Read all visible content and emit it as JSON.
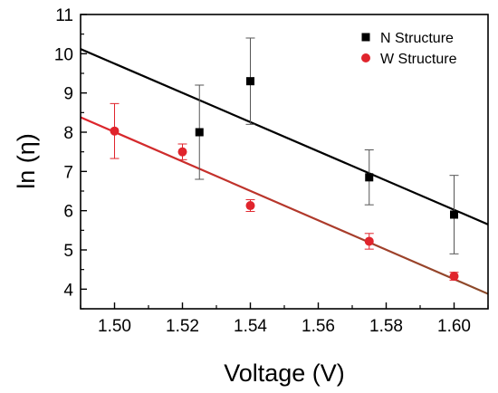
{
  "chart_data": {
    "type": "scatter",
    "xlabel": "Voltage (V)",
    "ylabel": "ln (η)",
    "xlim": [
      1.49,
      1.61
    ],
    "ylim": [
      3.5,
      11
    ],
    "x_ticks": [
      1.5,
      1.52,
      1.54,
      1.56,
      1.58,
      1.6
    ],
    "x_tick_labels": [
      "1.50",
      "1.52",
      "1.54",
      "1.56",
      "1.58",
      "1.60"
    ],
    "y_ticks": [
      4,
      5,
      6,
      7,
      8,
      9,
      10,
      11
    ],
    "y_tick_labels": [
      "4",
      "5",
      "6",
      "7",
      "8",
      "9",
      "10",
      "11"
    ],
    "grid": false,
    "legend_position": "top-right",
    "series": [
      {
        "name": "N  Structure",
        "marker": "square",
        "color": "#000000",
        "points": [
          {
            "x": 1.525,
            "y": 8.0,
            "err": 1.2
          },
          {
            "x": 1.54,
            "y": 9.3,
            "err": 1.1
          },
          {
            "x": 1.575,
            "y": 6.85,
            "err": 0.7
          },
          {
            "x": 1.6,
            "y": 5.9,
            "err": 1.0
          }
        ],
        "fit": {
          "x": [
            1.49,
            1.61
          ],
          "y": [
            10.12,
            5.65
          ],
          "color": "#000000"
        }
      },
      {
        "name": "W Structure",
        "marker": "circle",
        "color": "#e0242c",
        "points": [
          {
            "x": 1.5,
            "y": 8.03,
            "err": 0.7
          },
          {
            "x": 1.52,
            "y": 7.5,
            "err": 0.2
          },
          {
            "x": 1.54,
            "y": 6.13,
            "err": 0.15
          },
          {
            "x": 1.575,
            "y": 5.22,
            "err": 0.2
          },
          {
            "x": 1.6,
            "y": 4.33,
            "err": 0.1
          }
        ],
        "fit": {
          "x": [
            1.49,
            1.61
          ],
          "y": [
            8.38,
            3.88
          ],
          "colors": [
            "#e0242c",
            "#8a4a2a"
          ]
        }
      }
    ]
  }
}
